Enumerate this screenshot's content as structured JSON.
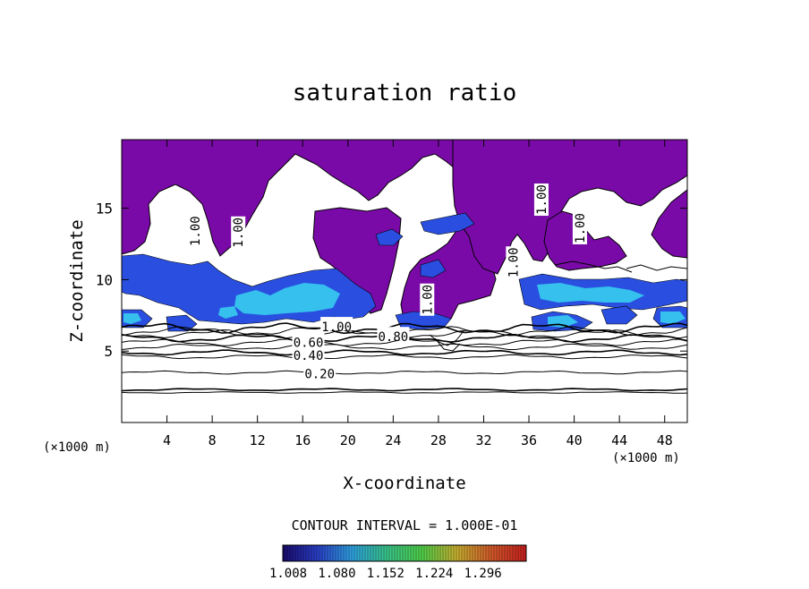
{
  "chart_data": {
    "type": "heatmap",
    "title": "saturation ratio",
    "xlabel": "X-coordinate",
    "ylabel": "Z-coordinate",
    "x_unit": "(×1000 m)",
    "x_unit_right": "(×1000 m)",
    "x_ticks": [
      4,
      8,
      12,
      16,
      20,
      24,
      28,
      32,
      36,
      40,
      44,
      48
    ],
    "y_ticks": [
      5,
      10,
      15
    ],
    "xlim": [
      0,
      50
    ],
    "ylim": [
      0,
      19.8
    ],
    "grid": false,
    "contour_interval_text": "CONTOUR INTERVAL = 1.000E-01",
    "colorbar": {
      "ticks": [
        1.008,
        1.08,
        1.152,
        1.224,
        1.296
      ],
      "tick_labels": [
        "1.008",
        "1.080",
        "1.152",
        "1.224",
        "1.296"
      ],
      "colors": [
        "#1a0a6e",
        "#2a3fc8",
        "#2ea2e0",
        "#39c58a",
        "#4fd04a",
        "#c8b030",
        "#d25a2a",
        "#c81e1e"
      ]
    },
    "fill_colors": {
      "saturated": "#7a0aa8",
      "low_supersat": "#2a4fe0",
      "mid_supersat": "#35c0ee"
    },
    "contour_labels": [
      {
        "text": "0.20",
        "x": 17.5,
        "y": 3.4
      },
      {
        "text": "0.40",
        "x": 16.5,
        "y": 4.7
      },
      {
        "text": "0.60",
        "x": 16.5,
        "y": 5.6
      },
      {
        "text": "0.80",
        "x": 24.0,
        "y": 6.0
      },
      {
        "text": "1.00",
        "x": 19.0,
        "y": 6.7
      },
      {
        "text": "1.00",
        "x": 6.5,
        "y": 13.4
      },
      {
        "text": "1.00",
        "x": 10.3,
        "y": 13.3
      },
      {
        "text": "1.00",
        "x": 27.0,
        "y": 8.6
      },
      {
        "text": "1.00",
        "x": 34.6,
        "y": 11.2
      },
      {
        "text": "1.00",
        "x": 37.1,
        "y": 15.6
      },
      {
        "text": "1.00",
        "x": 40.5,
        "y": 13.6
      }
    ],
    "contour_levels_z": [
      2.1,
      2.3,
      3.5,
      4.6,
      4.9,
      5.3,
      5.6,
      5.9,
      6.2,
      6.4,
      6.6
    ]
  }
}
